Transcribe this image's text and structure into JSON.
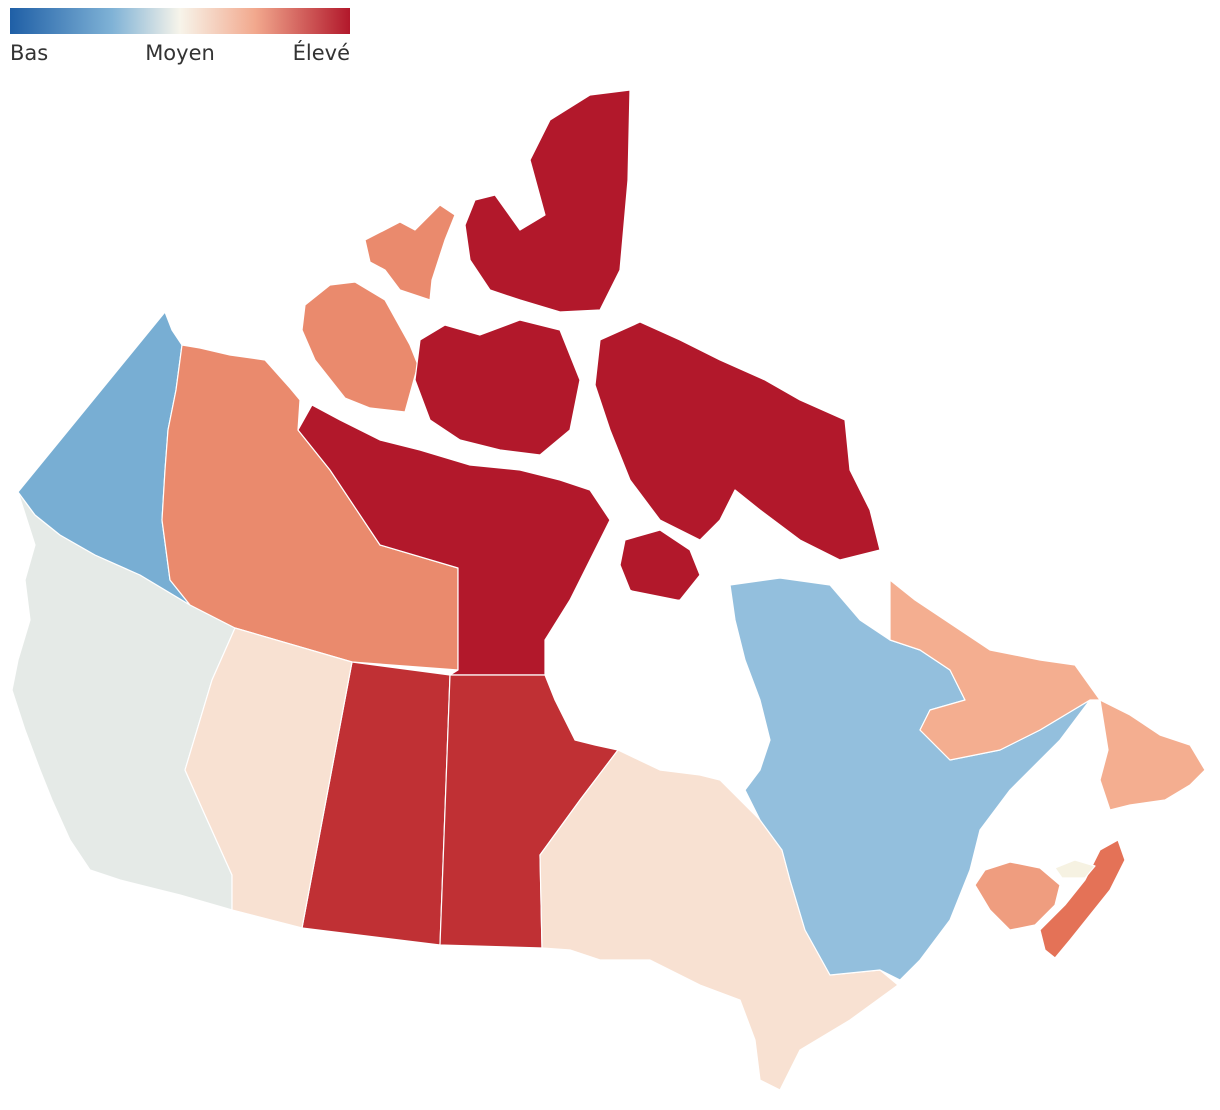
{
  "legend": {
    "low_label": "Bas",
    "mid_label": "Moyen",
    "high_label": "Élevé",
    "gradient_stops": [
      "#1f5fa6",
      "#7fb2d6",
      "#f7f4ea",
      "#f2a98e",
      "#b2182b"
    ]
  },
  "regions": {
    "yukon": {
      "level": "low-mid",
      "color": "#78aed3"
    },
    "northwest_territories": {
      "level": "high-mid",
      "color": "#ea8a6d"
    },
    "nunavut": {
      "level": "very-high",
      "color": "#b2182b"
    },
    "british_columbia": {
      "level": "neutral",
      "color": "#e5eae7"
    },
    "alberta": {
      "level": "slightly-high",
      "color": "#f8e1d2"
    },
    "saskatchewan": {
      "level": "high",
      "color": "#c03034"
    },
    "manitoba": {
      "level": "high",
      "color": "#c03034"
    },
    "ontario": {
      "level": "slightly-high",
      "color": "#f8e1d2"
    },
    "quebec": {
      "level": "low-mid",
      "color": "#93bfdd"
    },
    "newfoundland_labrador": {
      "level": "mid-high",
      "color": "#f4ae90"
    },
    "new_brunswick": {
      "level": "mid-high",
      "color": "#ef9d7f"
    },
    "nova_scotia": {
      "level": "high-mid",
      "color": "#e47257"
    },
    "prince_edward_island": {
      "level": "neutral",
      "color": "#f6f2e2"
    }
  }
}
